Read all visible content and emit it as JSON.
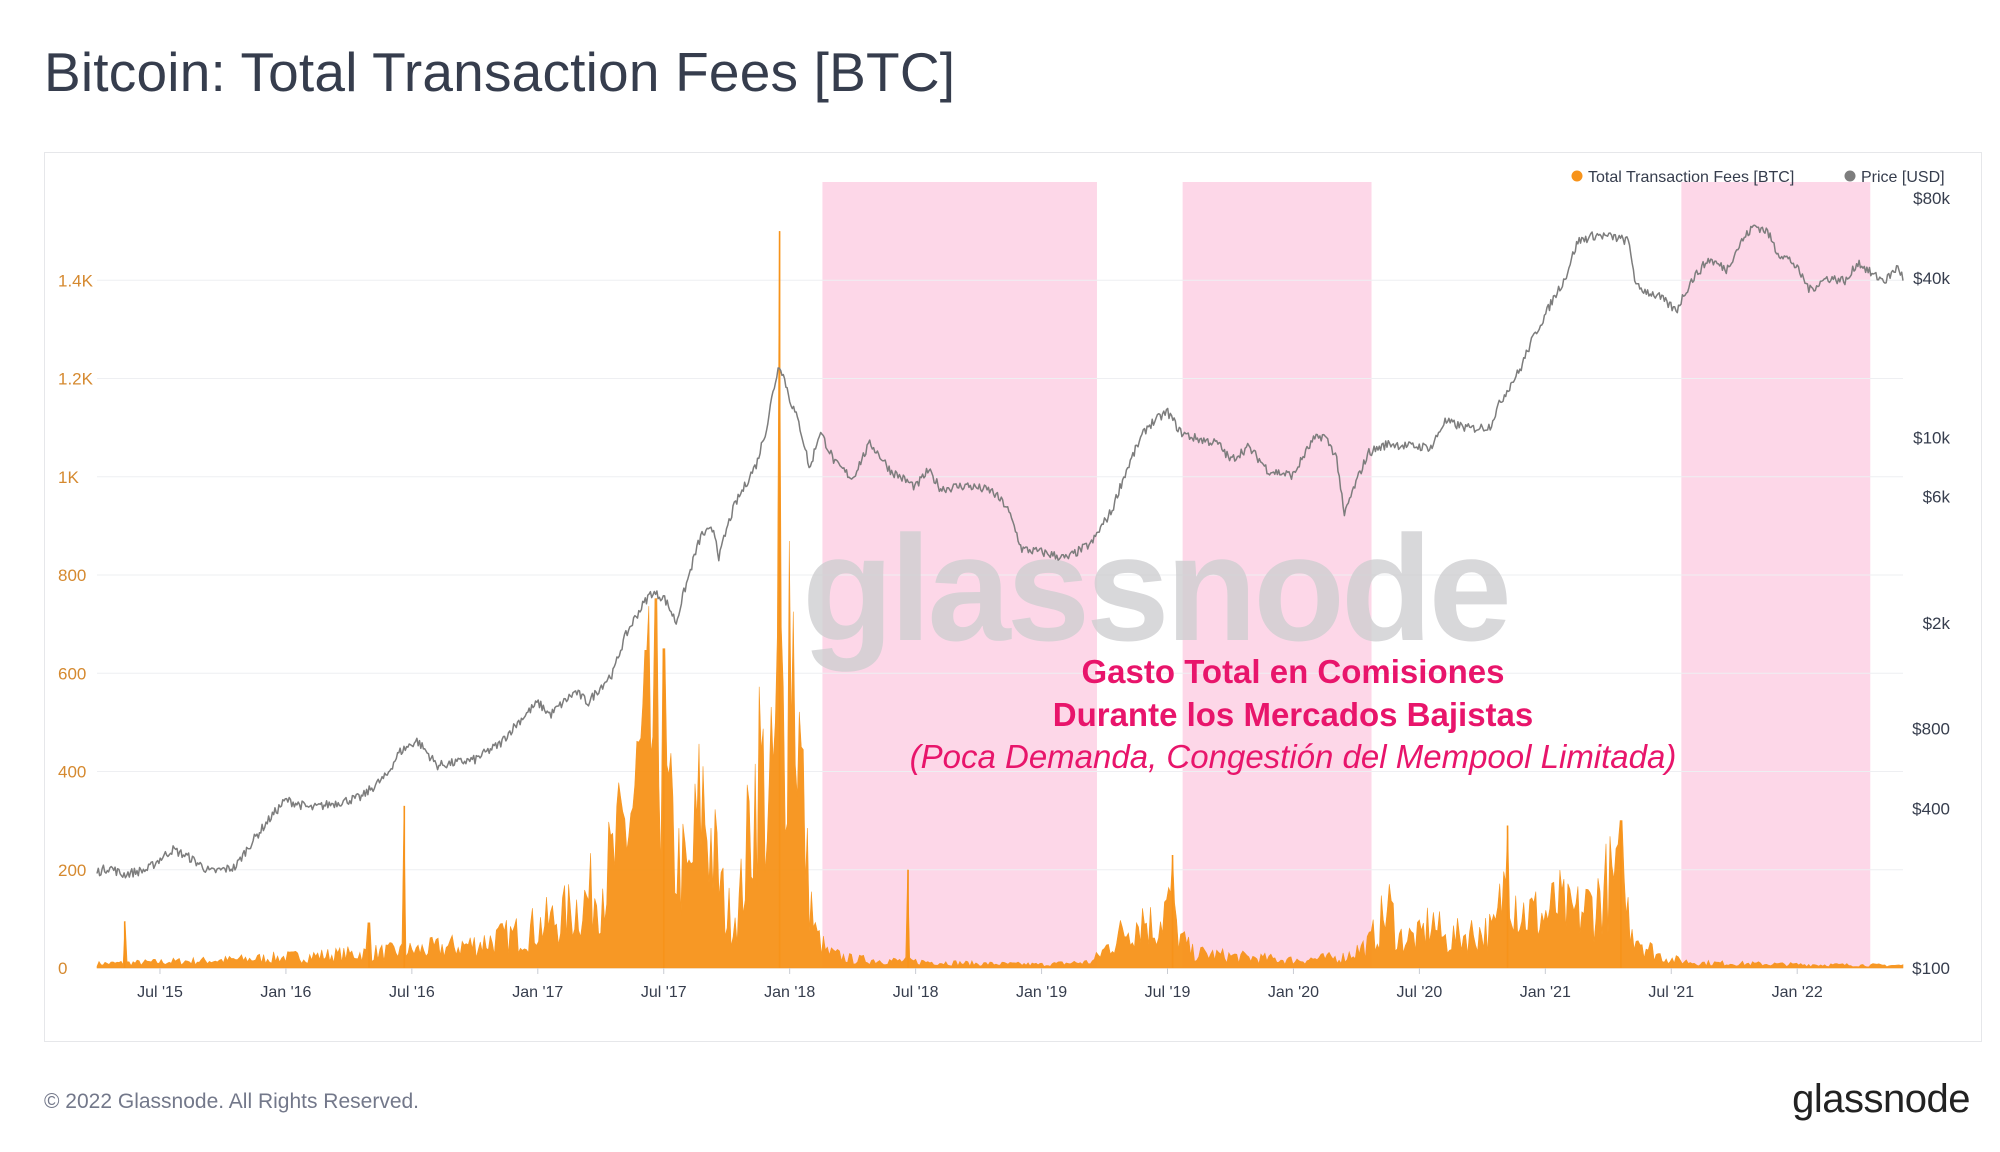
{
  "title": "Bitcoin: Total Transaction Fees [BTC]",
  "footer": {
    "copyright": "© 2022 Glassnode. All Rights Reserved.",
    "brand": "glassnode"
  },
  "colors": {
    "fees": "#f7931a",
    "price": "#7d7d7d",
    "bear_band": "#fdd7e8",
    "annotation": "#e8156b",
    "left_axis": "#d5892f"
  },
  "chart_data": {
    "type": "area",
    "title": "Bitcoin: Total Transaction Fees [BTC]",
    "watermark": "glassnode",
    "legend_position": "top-right",
    "legend": [
      {
        "name": "Total Transaction Fees [BTC]",
        "color": "#f7931a"
      },
      {
        "name": "Price [USD]",
        "color": "#7d7d7d"
      }
    ],
    "x_range": [
      2015.25,
      2022.42
    ],
    "x_ticks": [
      {
        "label": "Jul '15",
        "t": 2015.5
      },
      {
        "label": "Jan '16",
        "t": 2016.0
      },
      {
        "label": "Jul '16",
        "t": 2016.5
      },
      {
        "label": "Jan '17",
        "t": 2017.0
      },
      {
        "label": "Jul '17",
        "t": 2017.5
      },
      {
        "label": "Jan '18",
        "t": 2018.0
      },
      {
        "label": "Jul '18",
        "t": 2018.5
      },
      {
        "label": "Jan '19",
        "t": 2019.0
      },
      {
        "label": "Jul '19",
        "t": 2019.5
      },
      {
        "label": "Jan '20",
        "t": 2020.0
      },
      {
        "label": "Jul '20",
        "t": 2020.5
      },
      {
        "label": "Jan '21",
        "t": 2021.0
      },
      {
        "label": "Jul '21",
        "t": 2021.5
      },
      {
        "label": "Jan '22",
        "t": 2022.0
      }
    ],
    "left_axis": {
      "label": "Total Transaction Fees [BTC]",
      "range": [
        0,
        1600
      ],
      "ticks": [
        {
          "label": "0",
          "v": 0
        },
        {
          "label": "200",
          "v": 200
        },
        {
          "label": "400",
          "v": 400
        },
        {
          "label": "600",
          "v": 600
        },
        {
          "label": "800",
          "v": 800
        },
        {
          "label": "1K",
          "v": 1000
        },
        {
          "label": "1.2K",
          "v": 1200
        },
        {
          "label": "1.4K",
          "v": 1400
        }
      ]
    },
    "right_axis": {
      "label": "Price [USD]",
      "scale": "log",
      "range": [
        100,
        80000
      ],
      "ticks": [
        {
          "label": "$100",
          "v": 100
        },
        {
          "label": "$400",
          "v": 400
        },
        {
          "label": "$800",
          "v": 800
        },
        {
          "label": "$2k",
          "v": 2000
        },
        {
          "label": "$6k",
          "v": 6000
        },
        {
          "label": "$10k",
          "v": 10000
        },
        {
          "label": "$40k",
          "v": 40000
        },
        {
          "label": "$80k",
          "v": 80000
        }
      ]
    },
    "bear_market_periods": [
      {
        "start": 2018.13,
        "end": 2019.22
      },
      {
        "start": 2019.56,
        "end": 2020.31
      },
      {
        "start": 2021.54,
        "end": 2022.29
      }
    ],
    "annotation": {
      "line1": "Gasto Total en Comisiones",
      "line2": "Durante los Mercados Bajistas",
      "line3": "(Poca Demanda, Congestión del Mempool Limitada)"
    },
    "series": [
      {
        "name": "Price [USD]",
        "axis": "right",
        "points": [
          [
            2015.25,
            230
          ],
          [
            2015.3,
            240
          ],
          [
            2015.35,
            225
          ],
          [
            2015.45,
            235
          ],
          [
            2015.55,
            280
          ],
          [
            2015.62,
            260
          ],
          [
            2015.7,
            230
          ],
          [
            2015.8,
            240
          ],
          [
            2015.9,
            330
          ],
          [
            2016.0,
            430
          ],
          [
            2016.1,
            400
          ],
          [
            2016.2,
            420
          ],
          [
            2016.3,
            440
          ],
          [
            2016.4,
            530
          ],
          [
            2016.45,
            650
          ],
          [
            2016.52,
            720
          ],
          [
            2016.6,
            580
          ],
          [
            2016.75,
            610
          ],
          [
            2016.85,
            700
          ],
          [
            2016.95,
            900
          ],
          [
            2017.0,
            1000
          ],
          [
            2017.05,
            900
          ],
          [
            2017.15,
            1100
          ],
          [
            2017.2,
            1000
          ],
          [
            2017.3,
            1300
          ],
          [
            2017.35,
            1800
          ],
          [
            2017.45,
            2600
          ],
          [
            2017.5,
            2500
          ],
          [
            2017.55,
            2000
          ],
          [
            2017.6,
            3000
          ],
          [
            2017.65,
            4300
          ],
          [
            2017.7,
            4500
          ],
          [
            2017.72,
            3500
          ],
          [
            2017.78,
            5500
          ],
          [
            2017.82,
            6500
          ],
          [
            2017.87,
            8000
          ],
          [
            2017.91,
            11000
          ],
          [
            2017.96,
            19000
          ],
          [
            2018.0,
            14000
          ],
          [
            2018.04,
            11000
          ],
          [
            2018.08,
            7500
          ],
          [
            2018.12,
            10500
          ],
          [
            2018.18,
            8000
          ],
          [
            2018.25,
            7000
          ],
          [
            2018.32,
            9500
          ],
          [
            2018.4,
            7500
          ],
          [
            2018.5,
            6500
          ],
          [
            2018.55,
            7500
          ],
          [
            2018.6,
            6400
          ],
          [
            2018.7,
            6600
          ],
          [
            2018.8,
            6300
          ],
          [
            2018.86,
            5500
          ],
          [
            2018.92,
            3800
          ],
          [
            2019.0,
            3700
          ],
          [
            2019.1,
            3500
          ],
          [
            2019.2,
            4000
          ],
          [
            2019.28,
            5300
          ],
          [
            2019.35,
            8000
          ],
          [
            2019.42,
            11000
          ],
          [
            2019.5,
            12500
          ],
          [
            2019.55,
            10500
          ],
          [
            2019.6,
            10000
          ],
          [
            2019.7,
            9500
          ],
          [
            2019.75,
            8200
          ],
          [
            2019.82,
            9200
          ],
          [
            2019.9,
            7500
          ],
          [
            2020.0,
            7200
          ],
          [
            2020.08,
            9800
          ],
          [
            2020.12,
            10200
          ],
          [
            2020.17,
            8500
          ],
          [
            2020.2,
            5000
          ],
          [
            2020.25,
            6800
          ],
          [
            2020.3,
            8800
          ],
          [
            2020.38,
            9500
          ],
          [
            2020.45,
            9300
          ],
          [
            2020.55,
            9200
          ],
          [
            2020.6,
            11500
          ],
          [
            2020.7,
            10800
          ],
          [
            2020.78,
            11000
          ],
          [
            2020.82,
            13500
          ],
          [
            2020.9,
            18000
          ],
          [
            2021.0,
            29000
          ],
          [
            2021.08,
            40000
          ],
          [
            2021.13,
            55000
          ],
          [
            2021.2,
            58000
          ],
          [
            2021.27,
            57000
          ],
          [
            2021.33,
            55000
          ],
          [
            2021.36,
            37000
          ],
          [
            2021.45,
            34000
          ],
          [
            2021.52,
            30000
          ],
          [
            2021.58,
            39000
          ],
          [
            2021.65,
            47000
          ],
          [
            2021.72,
            43000
          ],
          [
            2021.78,
            55000
          ],
          [
            2021.83,
            63000
          ],
          [
            2021.88,
            60000
          ],
          [
            2021.92,
            50000
          ],
          [
            2021.98,
            46000
          ],
          [
            2022.05,
            36000
          ],
          [
            2022.12,
            40000
          ],
          [
            2022.2,
            39000
          ],
          [
            2022.24,
            46000
          ],
          [
            2022.3,
            41000
          ],
          [
            2022.35,
            39000
          ],
          [
            2022.4,
            44000
          ],
          [
            2022.42,
            40000
          ]
        ]
      },
      {
        "name": "Total Transaction Fees [BTC]",
        "axis": "left",
        "points": [
          [
            2015.25,
            10
          ],
          [
            2015.4,
            12
          ],
          [
            2015.55,
            15
          ],
          [
            2015.75,
            18
          ],
          [
            2016.0,
            25
          ],
          [
            2016.25,
            32
          ],
          [
            2016.5,
            40
          ],
          [
            2016.75,
            55
          ],
          [
            2016.9,
            75
          ],
          [
            2017.0,
            95
          ],
          [
            2017.1,
            120
          ],
          [
            2017.2,
            160
          ],
          [
            2017.3,
            240
          ],
          [
            2017.38,
            380
          ],
          [
            2017.43,
            520
          ],
          [
            2017.47,
            560
          ],
          [
            2017.5,
            420
          ],
          [
            2017.55,
            250
          ],
          [
            2017.6,
            200
          ],
          [
            2017.65,
            400
          ],
          [
            2017.7,
            260
          ],
          [
            2017.75,
            120
          ],
          [
            2017.8,
            140
          ],
          [
            2017.85,
            360
          ],
          [
            2017.88,
            480
          ],
          [
            2017.92,
            340
          ],
          [
            2017.96,
            650
          ],
          [
            2017.98,
            560
          ],
          [
            2018.0,
            900
          ],
          [
            2018.03,
            600
          ],
          [
            2018.07,
            220
          ],
          [
            2018.1,
            80
          ],
          [
            2018.15,
            35
          ],
          [
            2018.25,
            20
          ],
          [
            2018.5,
            15
          ],
          [
            2018.75,
            10
          ],
          [
            2019.0,
            8
          ],
          [
            2019.2,
            14
          ],
          [
            2019.3,
            70
          ],
          [
            2019.4,
            120
          ],
          [
            2019.45,
            90
          ],
          [
            2019.5,
            150
          ],
          [
            2019.55,
            70
          ],
          [
            2019.6,
            35
          ],
          [
            2019.8,
            25
          ],
          [
            2020.0,
            18
          ],
          [
            2020.2,
            25
          ],
          [
            2020.3,
            55
          ],
          [
            2020.38,
            140
          ],
          [
            2020.42,
            70
          ],
          [
            2020.5,
            70
          ],
          [
            2020.55,
            110
          ],
          [
            2020.6,
            65
          ],
          [
            2020.7,
            80
          ],
          [
            2020.8,
            85
          ],
          [
            2020.85,
            230
          ],
          [
            2020.9,
            130
          ],
          [
            2021.0,
            120
          ],
          [
            2021.05,
            150
          ],
          [
            2021.1,
            120
          ],
          [
            2021.2,
            150
          ],
          [
            2021.25,
            200
          ],
          [
            2021.3,
            190
          ],
          [
            2021.35,
            90
          ],
          [
            2021.4,
            50
          ],
          [
            2021.45,
            30
          ],
          [
            2021.5,
            20
          ],
          [
            2021.6,
            12
          ],
          [
            2021.8,
            10
          ],
          [
            2022.0,
            8
          ],
          [
            2022.2,
            7
          ],
          [
            2022.42,
            6
          ]
        ],
        "spikes": [
          [
            2015.36,
            95
          ],
          [
            2016.33,
            92
          ],
          [
            2016.47,
            330
          ],
          [
            2017.5,
            650
          ],
          [
            2017.96,
            1500
          ],
          [
            2018.47,
            200
          ],
          [
            2019.52,
            230
          ],
          [
            2020.85,
            290
          ],
          [
            2021.3,
            300
          ]
        ]
      }
    ]
  }
}
